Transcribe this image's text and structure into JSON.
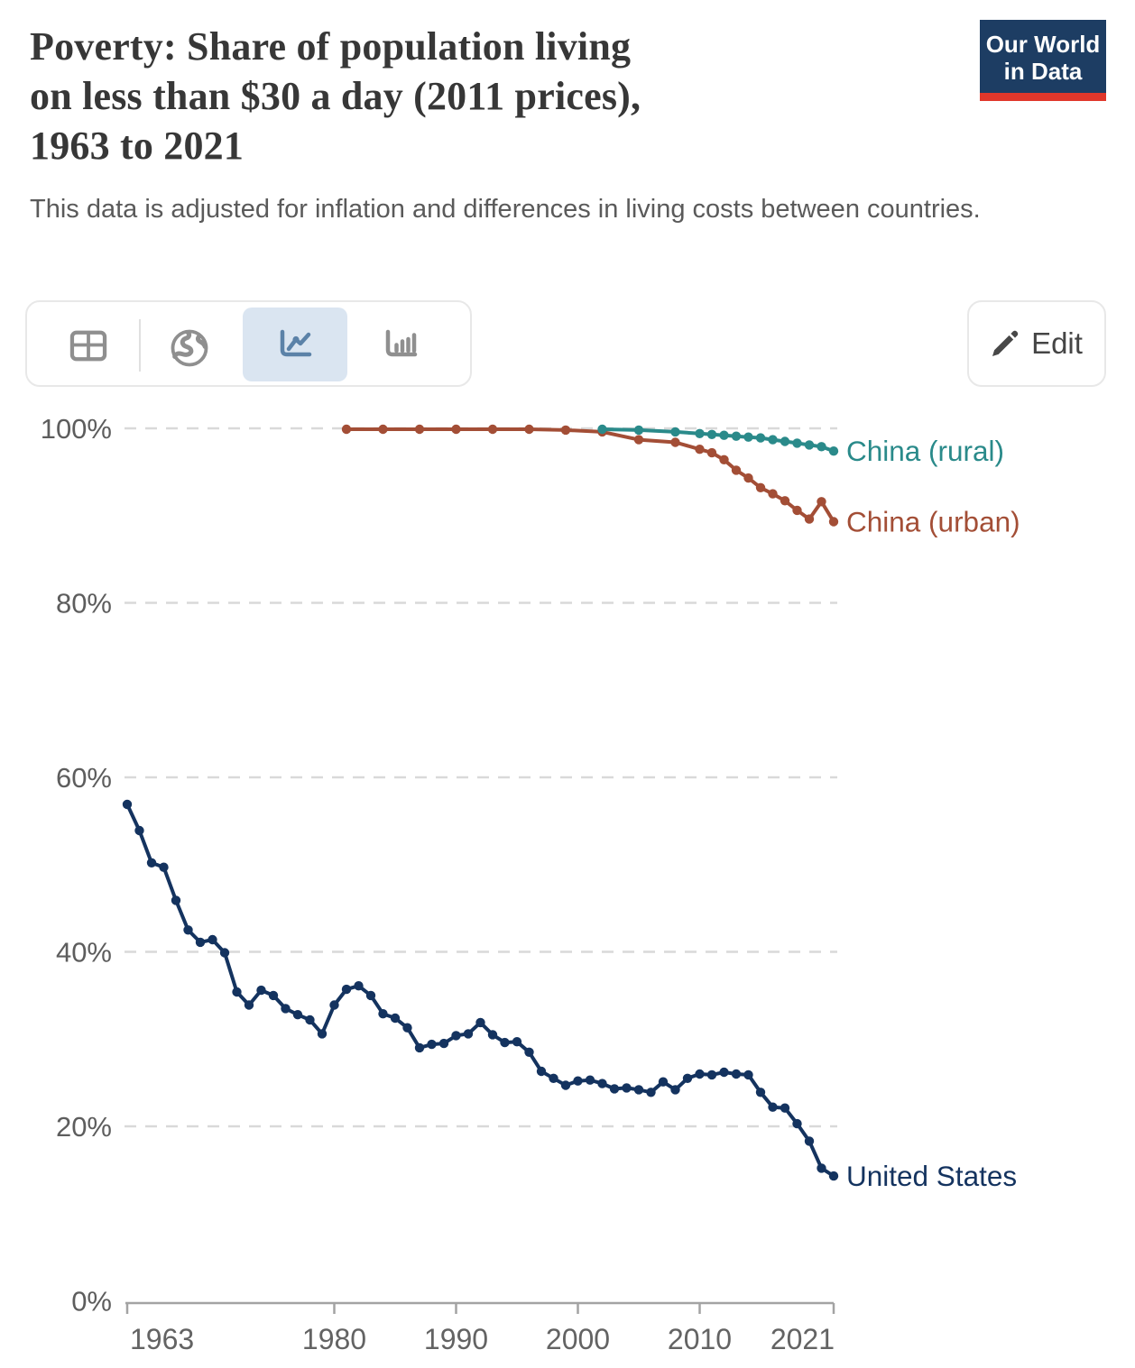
{
  "header": {
    "title_lines": [
      "Poverty: Share of population living",
      "on less than $30 a day (2011 prices),",
      "1963 to 2021"
    ],
    "subtitle": "This data is adjusted for inflation and differences in living costs between countries."
  },
  "logo": {
    "line1": "Our World",
    "line2": "in Data",
    "bg_color": "#1d3d63",
    "bar_color": "#e0372b"
  },
  "toolbar": {
    "tabs": [
      {
        "name": "table",
        "icon": "table-icon",
        "active": false
      },
      {
        "name": "map",
        "icon": "globe-icon",
        "active": false
      },
      {
        "name": "line-chart",
        "icon": "line-chart-icon",
        "active": true
      },
      {
        "name": "bar-chart",
        "icon": "bar-chart-icon",
        "active": false
      }
    ],
    "active_tab_bg": "#dae5f1",
    "active_icon_color": "#5b82a8",
    "icon_color": "#8f8f8f",
    "edit_label": "Edit"
  },
  "chart_data": {
    "type": "line",
    "title": "Poverty: Share of population living on less than $30 a day (2011 prices), 1963 to 2021",
    "subtitle": "This data is adjusted for inflation and differences in living costs between countries.",
    "xlabel": "",
    "ylabel": "",
    "grid": "dashed horizontal gridlines at 20/40/60/80/100",
    "legend_position": "labels at line ends",
    "x_axis": {
      "min": 1963,
      "max": 2021,
      "ticks": [
        {
          "v": 1963,
          "label": "1963"
        },
        {
          "v": 1980,
          "label": "1980"
        },
        {
          "v": 1990,
          "label": "1990"
        },
        {
          "v": 2000,
          "label": "2000"
        },
        {
          "v": 2010,
          "label": "2010"
        },
        {
          "v": 2021,
          "label": "2021"
        }
      ]
    },
    "y_axis": {
      "min": 0,
      "max": 100,
      "unit": "%",
      "ticks": [
        {
          "v": 0,
          "label": "0%"
        },
        {
          "v": 20,
          "label": "20%"
        },
        {
          "v": 40,
          "label": "40%"
        },
        {
          "v": 60,
          "label": "60%"
        },
        {
          "v": 80,
          "label": "80%"
        },
        {
          "v": 100,
          "label": "100%"
        }
      ]
    },
    "series": [
      {
        "name": "China (rural)",
        "color": "#2a8a8a",
        "points": [
          [
            2002,
            99.9
          ],
          [
            2005,
            99.8
          ],
          [
            2008,
            99.6
          ],
          [
            2010,
            99.4
          ],
          [
            2011,
            99.3
          ],
          [
            2012,
            99.2
          ],
          [
            2013,
            99.1
          ],
          [
            2014,
            99.0
          ],
          [
            2015,
            98.9
          ],
          [
            2016,
            98.7
          ],
          [
            2017,
            98.5
          ],
          [
            2018,
            98.3
          ],
          [
            2019,
            98.1
          ],
          [
            2020,
            97.9
          ],
          [
            2021,
            97.4
          ]
        ]
      },
      {
        "name": "China (urban)",
        "color": "#a34e36",
        "points": [
          [
            1981,
            99.9
          ],
          [
            1984,
            99.9
          ],
          [
            1987,
            99.9
          ],
          [
            1990,
            99.9
          ],
          [
            1993,
            99.9
          ],
          [
            1996,
            99.9
          ],
          [
            1999,
            99.8
          ],
          [
            2002,
            99.6
          ],
          [
            2005,
            98.7
          ],
          [
            2008,
            98.4
          ],
          [
            2010,
            97.6
          ],
          [
            2011,
            97.2
          ],
          [
            2012,
            96.4
          ],
          [
            2013,
            95.2
          ],
          [
            2014,
            94.3
          ],
          [
            2015,
            93.2
          ],
          [
            2016,
            92.5
          ],
          [
            2017,
            91.7
          ],
          [
            2018,
            90.6
          ],
          [
            2019,
            89.6
          ],
          [
            2020,
            91.6
          ],
          [
            2021,
            89.3
          ]
        ]
      },
      {
        "name": "United States",
        "color": "#14335f",
        "points": [
          [
            1963,
            56.9
          ],
          [
            1964,
            53.9
          ],
          [
            1965,
            50.2
          ],
          [
            1966,
            49.7
          ],
          [
            1967,
            45.9
          ],
          [
            1968,
            42.5
          ],
          [
            1969,
            41.1
          ],
          [
            1970,
            41.4
          ],
          [
            1971,
            39.9
          ],
          [
            1972,
            35.4
          ],
          [
            1973,
            33.9
          ],
          [
            1974,
            35.6
          ],
          [
            1975,
            35.0
          ],
          [
            1976,
            33.5
          ],
          [
            1977,
            32.8
          ],
          [
            1978,
            32.2
          ],
          [
            1979,
            30.6
          ],
          [
            1980,
            33.9
          ],
          [
            1981,
            35.7
          ],
          [
            1982,
            36.1
          ],
          [
            1983,
            35.0
          ],
          [
            1984,
            32.9
          ],
          [
            1985,
            32.4
          ],
          [
            1986,
            31.3
          ],
          [
            1987,
            29.0
          ],
          [
            1988,
            29.4
          ],
          [
            1989,
            29.5
          ],
          [
            1990,
            30.4
          ],
          [
            1991,
            30.6
          ],
          [
            1992,
            31.9
          ],
          [
            1993,
            30.5
          ],
          [
            1994,
            29.6
          ],
          [
            1995,
            29.7
          ],
          [
            1996,
            28.5
          ],
          [
            1997,
            26.3
          ],
          [
            1998,
            25.5
          ],
          [
            1999,
            24.7
          ],
          [
            2000,
            25.2
          ],
          [
            2001,
            25.3
          ],
          [
            2002,
            24.9
          ],
          [
            2003,
            24.3
          ],
          [
            2004,
            24.4
          ],
          [
            2005,
            24.2
          ],
          [
            2006,
            23.9
          ],
          [
            2007,
            25.1
          ],
          [
            2008,
            24.2
          ],
          [
            2009,
            25.5
          ],
          [
            2010,
            26.0
          ],
          [
            2011,
            25.9
          ],
          [
            2012,
            26.2
          ],
          [
            2013,
            26.0
          ],
          [
            2014,
            25.9
          ],
          [
            2015,
            23.9
          ],
          [
            2016,
            22.2
          ],
          [
            2017,
            22.1
          ],
          [
            2018,
            20.3
          ],
          [
            2019,
            18.3
          ],
          [
            2020,
            15.2
          ],
          [
            2021,
            14.3
          ]
        ]
      }
    ]
  }
}
